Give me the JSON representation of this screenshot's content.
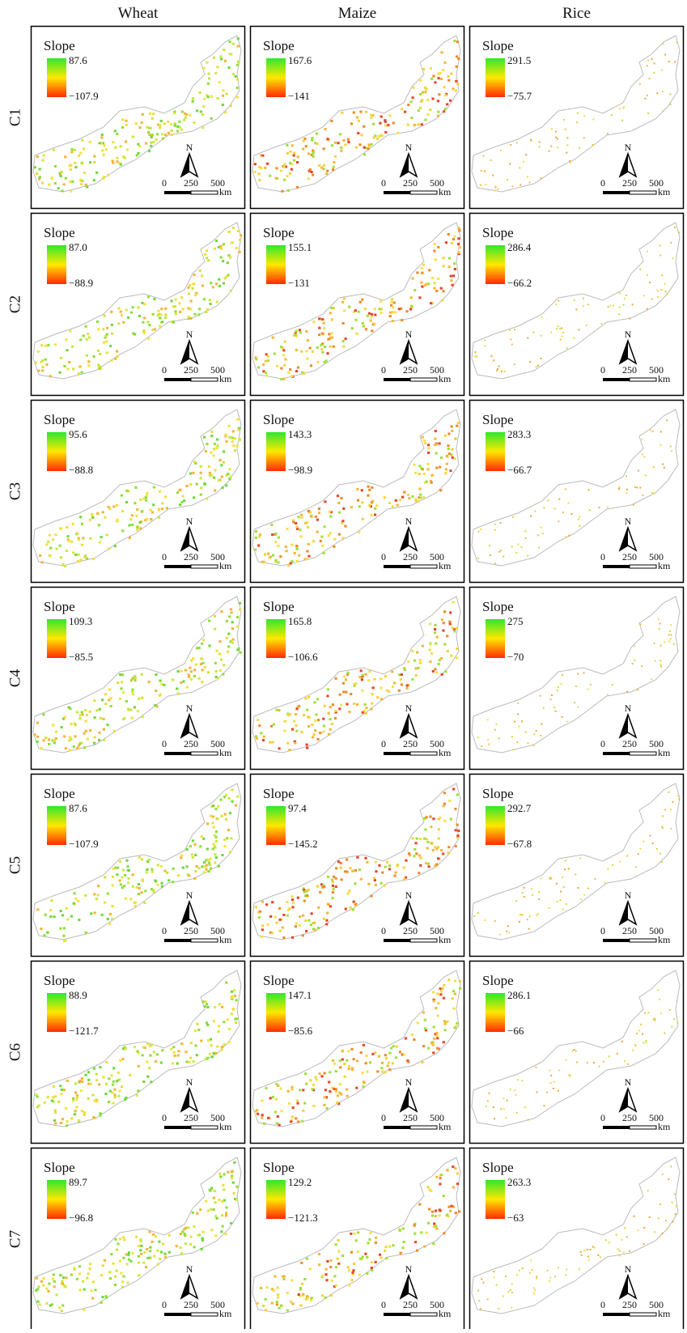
{
  "header": {
    "columns": [
      "Wheat",
      "Maize",
      "Rice"
    ]
  },
  "rows": [
    {
      "label": "C1",
      "panels": [
        {
          "legend_title": "Slope",
          "max": "87.6",
          "min": "−107.9"
        },
        {
          "legend_title": "Slope",
          "max": "167.6",
          "min": "−141"
        },
        {
          "legend_title": "Slope",
          "max": "291.5",
          "min": "−75.7"
        }
      ]
    },
    {
      "label": "C2",
      "panels": [
        {
          "legend_title": "Slope",
          "max": "87.0",
          "min": "−88.9"
        },
        {
          "legend_title": "Slope",
          "max": "155.1",
          "min": "−131"
        },
        {
          "legend_title": "Slope",
          "max": "286.4",
          "min": "−66.2"
        }
      ]
    },
    {
      "label": "C3",
      "panels": [
        {
          "legend_title": "Slope",
          "max": "95.6",
          "min": "−88.8"
        },
        {
          "legend_title": "Slope",
          "max": "143.3",
          "min": "−98.9"
        },
        {
          "legend_title": "Slope",
          "max": "283.3",
          "min": "−66.7"
        }
      ]
    },
    {
      "label": "C4",
      "panels": [
        {
          "legend_title": "Slope",
          "max": "109.3",
          "min": "−85.5"
        },
        {
          "legend_title": "Slope",
          "max": "165.8",
          "min": "−106.6"
        },
        {
          "legend_title": "Slope",
          "max": "275",
          "min": "−70"
        }
      ]
    },
    {
      "label": "C5",
      "panels": [
        {
          "legend_title": "Slope",
          "max": "87.6",
          "min": "−107.9"
        },
        {
          "legend_title": "Slope",
          "max": "97.4",
          "min": "−145.2"
        },
        {
          "legend_title": "Slope",
          "max": "292.7",
          "min": "−67.8"
        }
      ]
    },
    {
      "label": "C6",
      "panels": [
        {
          "legend_title": "Slope",
          "max": "88.9",
          "min": "−121.7"
        },
        {
          "legend_title": "Slope",
          "max": "147.1",
          "min": "−85.6"
        },
        {
          "legend_title": "Slope",
          "max": "286.1",
          "min": "−66"
        }
      ]
    },
    {
      "label": "C7",
      "panels": [
        {
          "legend_title": "Slope",
          "max": "89.7",
          "min": "−96.8"
        },
        {
          "legend_title": "Slope",
          "max": "129.2",
          "min": "−121.3"
        },
        {
          "legend_title": "Slope",
          "max": "263.3",
          "min": "−63"
        }
      ]
    }
  ],
  "map": {
    "north_label": "N",
    "scale_labels": [
      "0",
      "250",
      "500"
    ],
    "scale_unit": "km"
  }
}
